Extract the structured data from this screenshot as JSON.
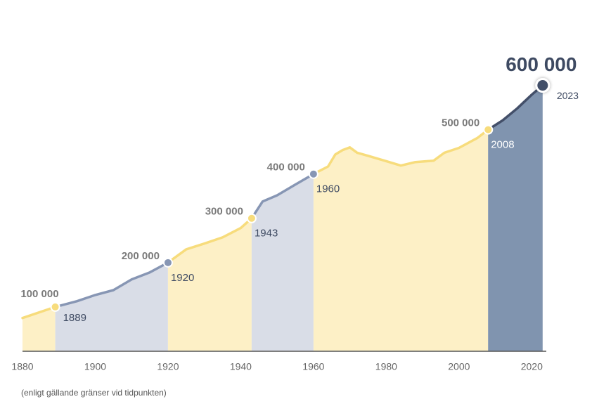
{
  "chart_data": {
    "type": "area",
    "x": [
      1880,
      1889,
      1895,
      1900,
      1905,
      1910,
      1915,
      1920,
      1925,
      1930,
      1935,
      1940,
      1943,
      1946,
      1950,
      1955,
      1960,
      1964,
      1966,
      1968,
      1970,
      1972,
      1975,
      1980,
      1984,
      1988,
      1993,
      1996,
      2000,
      2005,
      2008,
      2012,
      2016,
      2020,
      2023
    ],
    "values": [
      75000,
      100000,
      113000,
      127000,
      138000,
      162000,
      178000,
      200000,
      230000,
      243000,
      257000,
      278000,
      300000,
      338000,
      352000,
      376000,
      400000,
      417000,
      444000,
      454000,
      460000,
      448000,
      441000,
      429000,
      419000,
      427000,
      430000,
      448000,
      459000,
      481000,
      500000,
      521000,
      548000,
      579000,
      600000
    ],
    "milestones": {
      "x": [
        1889,
        1920,
        1943,
        1960,
        2008,
        2023
      ],
      "values": [
        100000,
        200000,
        300000,
        400000,
        500000,
        600000
      ],
      "value_labels": [
        "100 000",
        "200 000",
        "300 000",
        "400 000",
        "500 000",
        "600 000"
      ]
    },
    "segment_colors": [
      "#fdf0c6",
      "#d9dde7",
      "#fdf0c6",
      "#d9dde7",
      "#fdf0c6",
      "#8094af"
    ],
    "line_colors": [
      "#f7dc7c",
      "#8796b4",
      "#f7dc7c",
      "#8796b4",
      "#f7dc7c",
      "#434f69"
    ],
    "xlim": [
      1880,
      2024
    ],
    "ylim": [
      0,
      650000
    ],
    "xticks": [
      1880,
      1900,
      1920,
      1940,
      1960,
      1980,
      2000,
      2020
    ],
    "note": "(enligt gällande gränser vid tidpunkten)"
  }
}
